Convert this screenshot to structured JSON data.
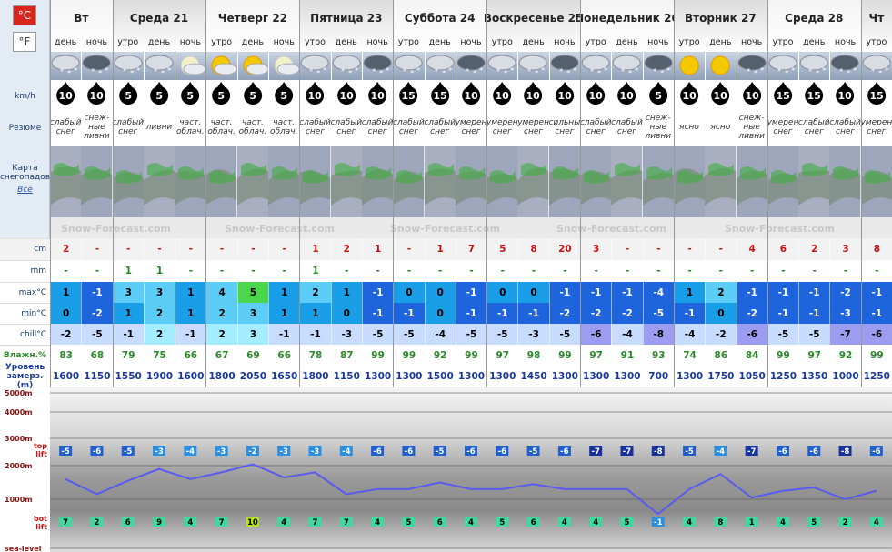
{
  "units": {
    "celsius": "°C",
    "fahrenheit": "°F"
  },
  "days": [
    {
      "name": "Вт",
      "periods": [
        "день",
        "ночь"
      ]
    },
    {
      "name": "Среда 21",
      "periods": [
        "утро",
        "день",
        "ночь"
      ]
    },
    {
      "name": "Четверг 22",
      "periods": [
        "утро",
        "день",
        "ночь"
      ]
    },
    {
      "name": "Пятница 23",
      "periods": [
        "утро",
        "день",
        "ночь"
      ]
    },
    {
      "name": "Суббота 24",
      "periods": [
        "утро",
        "день",
        "ночь"
      ]
    },
    {
      "name": "Воскресенье 25",
      "periods": [
        "утро",
        "день",
        "ночь"
      ]
    },
    {
      "name": "Понедельник 26",
      "periods": [
        "утро",
        "день",
        "ночь"
      ]
    },
    {
      "name": "Вторник 27",
      "periods": [
        "утро",
        "день",
        "ночь"
      ]
    },
    {
      "name": "Среда 28",
      "periods": [
        "утро",
        "день",
        "ночь"
      ]
    },
    {
      "name": "Чт",
      "periods": [
        "утро"
      ]
    }
  ],
  "row_labels": {
    "wind": "km/h",
    "summary": "Резюме",
    "map": "Карта снегопадов",
    "map_link": "Все",
    "snow": "cm",
    "rain": "mm",
    "max": "max°C",
    "min": "min°C",
    "chill": "chill°C",
    "humidity": "Влажн.%",
    "freezing": "Уровень замерз. (m)"
  },
  "watermark": "Snow-Forecast.com",
  "wind": [
    10,
    10,
    5,
    5,
    5,
    5,
    5,
    5,
    10,
    10,
    10,
    15,
    15,
    10,
    10,
    10,
    10,
    10,
    10,
    5,
    10,
    10,
    10,
    15,
    15,
    10,
    15
  ],
  "summary": [
    "слабый снег",
    "снеж-ные ливни",
    "слабый снег",
    "ливни",
    "част. облач.",
    "част. облач.",
    "част. облач.",
    "част. облач.",
    "слабый снег",
    "слабый снег",
    "слабый снег",
    "слабый снег",
    "слабый снег",
    "умерен снег",
    "умерен снег",
    "умерен снег",
    "сильны снег",
    "слабый снег",
    "слабый снег",
    "снеж-ные ливни",
    "ясно",
    "ясно",
    "снеж-ные ливни",
    "умерен снег",
    "слабый снег",
    "слабый снег",
    "умерен снег"
  ],
  "snow": [
    2,
    "-",
    "-",
    "-",
    "-",
    "-",
    "-",
    "-",
    1,
    2,
    1,
    "-",
    1,
    7,
    5,
    8,
    20,
    3,
    "-",
    "-",
    "-",
    "-",
    4,
    6,
    2,
    3,
    8
  ],
  "rain": [
    "-",
    "-",
    1,
    1,
    "-",
    "-",
    "-",
    "-",
    1,
    "-",
    "-",
    "-",
    "-",
    "-",
    "-",
    "-",
    "-",
    "-",
    "-",
    "-",
    "-",
    "-",
    "-",
    "-",
    "-",
    "-",
    "-"
  ],
  "max": [
    1,
    -1,
    3,
    3,
    1,
    4,
    5,
    1,
    2,
    1,
    -1,
    0,
    0,
    -1,
    0,
    0,
    -1,
    -1,
    -1,
    -4,
    1,
    2,
    -1,
    -1,
    -1,
    -2,
    -1
  ],
  "min": [
    0,
    -2,
    1,
    2,
    1,
    2,
    3,
    1,
    1,
    0,
    -1,
    -1,
    0,
    -1,
    -1,
    -1,
    -2,
    -2,
    -2,
    -5,
    -1,
    0,
    -2,
    -1,
    -1,
    -3,
    -1
  ],
  "chill": [
    -2,
    -5,
    -1,
    2,
    -1,
    2,
    3,
    -1,
    -1,
    -3,
    -5,
    -5,
    -4,
    -5,
    -5,
    -3,
    -5,
    -6,
    -4,
    -8,
    -4,
    -2,
    -6,
    -5,
    -5,
    -7,
    -6
  ],
  "humidity": [
    83,
    68,
    79,
    75,
    66,
    67,
    69,
    66,
    78,
    87,
    99,
    99,
    92,
    99,
    97,
    98,
    99,
    97,
    91,
    93,
    74,
    86,
    84,
    99,
    97,
    92,
    99
  ],
  "freezing": [
    1600,
    1150,
    1550,
    1900,
    1600,
    1800,
    2050,
    1650,
    1800,
    1150,
    1300,
    1300,
    1500,
    1300,
    1300,
    1450,
    1300,
    1300,
    1300,
    700,
    1300,
    1750,
    1050,
    1250,
    1350,
    1000,
    1250
  ],
  "chart": {
    "yticks": [
      {
        "value": 5000,
        "label": "5000m"
      },
      {
        "value": 4000,
        "label": "4000m"
      },
      {
        "value": 3000,
        "label": "3000m"
      },
      {
        "value": 2000,
        "label": "2000m"
      },
      {
        "value": 1000,
        "label": "1000m"
      },
      {
        "value": 0,
        "label": "sea-level"
      }
    ],
    "top_lift_label": "top lift",
    "bot_lift_label": "bot lift",
    "top_lift": [
      -5,
      -6,
      -5,
      -3,
      -4,
      -3,
      -2,
      -3,
      -3,
      -4,
      -6,
      -6,
      -5,
      -6,
      -6,
      -5,
      -6,
      -7,
      -7,
      -8,
      -5,
      -4,
      -7,
      -6,
      -6,
      -8,
      -6
    ],
    "bot_lift": [
      7,
      2,
      6,
      9,
      4,
      7,
      10,
      4,
      7,
      7,
      4,
      5,
      6,
      4,
      5,
      6,
      4,
      4,
      5,
      -1,
      4,
      8,
      1,
      4,
      5,
      2,
      4
    ]
  }
}
